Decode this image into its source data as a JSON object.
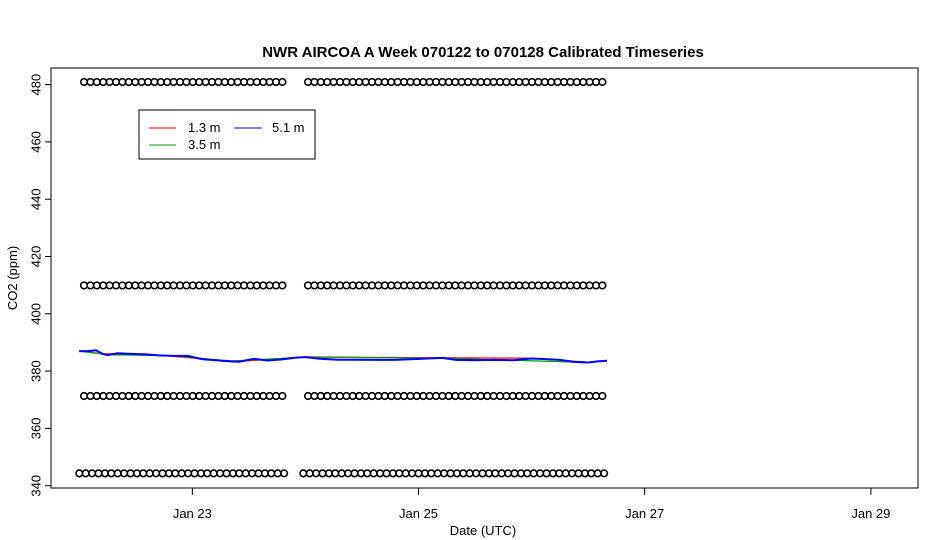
{
  "chart_data": {
    "type": "line",
    "title": "NWR AIRCOA A  Week 070122 to 070128  Calibrated Timeseries",
    "xlabel": "Date (UTC)",
    "ylabel": "CO2 (ppm)",
    "xlim": [
      "2007-01-21T18:00",
      "2007-01-29T10:00"
    ],
    "ylim": [
      339.2,
      485.8
    ],
    "x_ticks": [
      {
        "label": "Jan 23",
        "date": "2007-01-23T00:00"
      },
      {
        "label": "Jan 25",
        "date": "2007-01-25T00:00"
      },
      {
        "label": "Jan 27",
        "date": "2007-01-27T00:00"
      },
      {
        "label": "Jan 29",
        "date": "2007-01-29T00:00"
      }
    ],
    "y_ticks": [
      340,
      360,
      380,
      400,
      420,
      440,
      460,
      480
    ],
    "grid": false,
    "legend_position": "top-left",
    "legend": [
      {
        "name": "1.3 m",
        "color": "#ff0000"
      },
      {
        "name": "3.5 m",
        "color": "#00a000"
      },
      {
        "name": "5.1 m",
        "color": "#0000cc"
      }
    ],
    "series": [
      {
        "name": "5.1 m",
        "color": "#0000ff",
        "points": [
          {
            "x": "2007-01-22T00:00",
            "y": 387.0
          },
          {
            "x": "2007-01-22T02:00",
            "y": 387.0
          },
          {
            "x": "2007-01-22T03:30",
            "y": 387.3
          },
          {
            "x": "2007-01-22T05:00",
            "y": 386.0
          },
          {
            "x": "2007-01-22T06:00",
            "y": 385.6
          },
          {
            "x": "2007-01-22T08:00",
            "y": 386.2
          },
          {
            "x": "2007-01-22T11:00",
            "y": 386.0
          },
          {
            "x": "2007-01-22T14:00",
            "y": 385.8
          },
          {
            "x": "2007-01-22T17:00",
            "y": 385.5
          },
          {
            "x": "2007-01-22T20:00",
            "y": 385.3
          },
          {
            "x": "2007-01-22T23:00",
            "y": 385.3
          },
          {
            "x": "2007-01-23T02:00",
            "y": 384.2
          },
          {
            "x": "2007-01-23T05:00",
            "y": 383.8
          },
          {
            "x": "2007-01-23T08:00",
            "y": 383.4
          },
          {
            "x": "2007-01-23T10:00",
            "y": 383.3
          },
          {
            "x": "2007-01-23T13:00",
            "y": 384.3
          },
          {
            "x": "2007-01-23T16:00",
            "y": 383.7
          },
          {
            "x": "2007-01-23T19:00",
            "y": 384.1
          },
          {
            "x": "2007-01-23T22:00",
            "y": 384.7
          },
          {
            "x": "2007-01-24T00:00",
            "y": 384.9
          },
          {
            "x": "2007-01-24T03:00",
            "y": 384.3
          },
          {
            "x": "2007-01-24T07:00",
            "y": 384.0
          },
          {
            "x": "2007-01-24T11:00",
            "y": 384.0
          },
          {
            "x": "2007-01-24T15:00",
            "y": 383.9
          },
          {
            "x": "2007-01-24T19:00",
            "y": 383.9
          },
          {
            "x": "2007-01-24T23:00",
            "y": 384.2
          },
          {
            "x": "2007-01-25T02:00",
            "y": 384.4
          },
          {
            "x": "2007-01-25T05:00",
            "y": 384.6
          },
          {
            "x": "2007-01-25T08:00",
            "y": 383.9
          },
          {
            "x": "2007-01-25T12:00",
            "y": 383.8
          },
          {
            "x": "2007-01-25T16:00",
            "y": 383.9
          },
          {
            "x": "2007-01-25T20:00",
            "y": 383.8
          },
          {
            "x": "2007-01-26T00:00",
            "y": 384.4
          },
          {
            "x": "2007-01-26T03:00",
            "y": 384.2
          },
          {
            "x": "2007-01-26T06:00",
            "y": 383.9
          },
          {
            "x": "2007-01-26T09:00",
            "y": 383.2
          },
          {
            "x": "2007-01-26T12:00",
            "y": 383.0
          },
          {
            "x": "2007-01-26T14:00",
            "y": 383.4
          },
          {
            "x": "2007-01-26T16:00",
            "y": 383.6
          }
        ]
      },
      {
        "name": "1.3 m",
        "color": "#ff0000",
        "points": [
          {
            "x": "2007-01-22T00:00",
            "y": 387.1
          },
          {
            "x": "2007-01-22T05:00",
            "y": 386.0
          },
          {
            "x": "2007-01-22T14:00",
            "y": 386.0
          },
          {
            "x": "2007-01-23T02:00",
            "y": 384.3
          },
          {
            "x": "2007-01-23T10:00",
            "y": 383.4
          },
          {
            "x": "2007-01-24T00:00",
            "y": 385.0
          },
          {
            "x": "2007-01-25T05:00",
            "y": 384.6
          },
          {
            "x": "2007-01-26T00:00",
            "y": 384.5
          },
          {
            "x": "2007-01-26T12:00",
            "y": 383.1
          },
          {
            "x": "2007-01-26T16:00",
            "y": 383.7
          }
        ]
      },
      {
        "name": "3.5 m",
        "color": "#00a000",
        "points": [
          {
            "x": "2007-01-22T00:00",
            "y": 387.0
          },
          {
            "x": "2007-01-22T06:00",
            "y": 385.7
          },
          {
            "x": "2007-01-22T20:00",
            "y": 385.4
          },
          {
            "x": "2007-01-23T08:00",
            "y": 383.5
          },
          {
            "x": "2007-01-24T00:00",
            "y": 384.9
          },
          {
            "x": "2007-01-25T05:00",
            "y": 384.5
          },
          {
            "x": "2007-01-26T12:00",
            "y": 383.0
          },
          {
            "x": "2007-01-26T16:00",
            "y": 383.6
          }
        ]
      }
    ],
    "markers": [
      {
        "name": "circles-480",
        "y": 480.9,
        "x_start": "2007-01-22T01:00",
        "x_end": "2007-01-26T15:30",
        "gap": [
          "2007-01-23T20:00",
          "2007-01-23T23:20"
        ]
      },
      {
        "name": "circles-410",
        "y": 409.9,
        "x_start": "2007-01-22T01:00",
        "x_end": "2007-01-26T15:30",
        "gap": [
          "2007-01-23T20:00",
          "2007-01-23T23:20"
        ]
      },
      {
        "name": "circles-371",
        "y": 371.3,
        "x_start": "2007-01-22T01:00",
        "x_end": "2007-01-26T15:30",
        "gap": [
          "2007-01-23T20:00",
          "2007-01-23T23:20"
        ]
      },
      {
        "name": "circles-344",
        "y": 344.3,
        "x_start": "2007-01-22T00:00",
        "x_end": "2007-01-26T15:30",
        "gap": [
          "2007-01-23T20:00",
          "2007-01-23T23:20"
        ]
      }
    ]
  }
}
